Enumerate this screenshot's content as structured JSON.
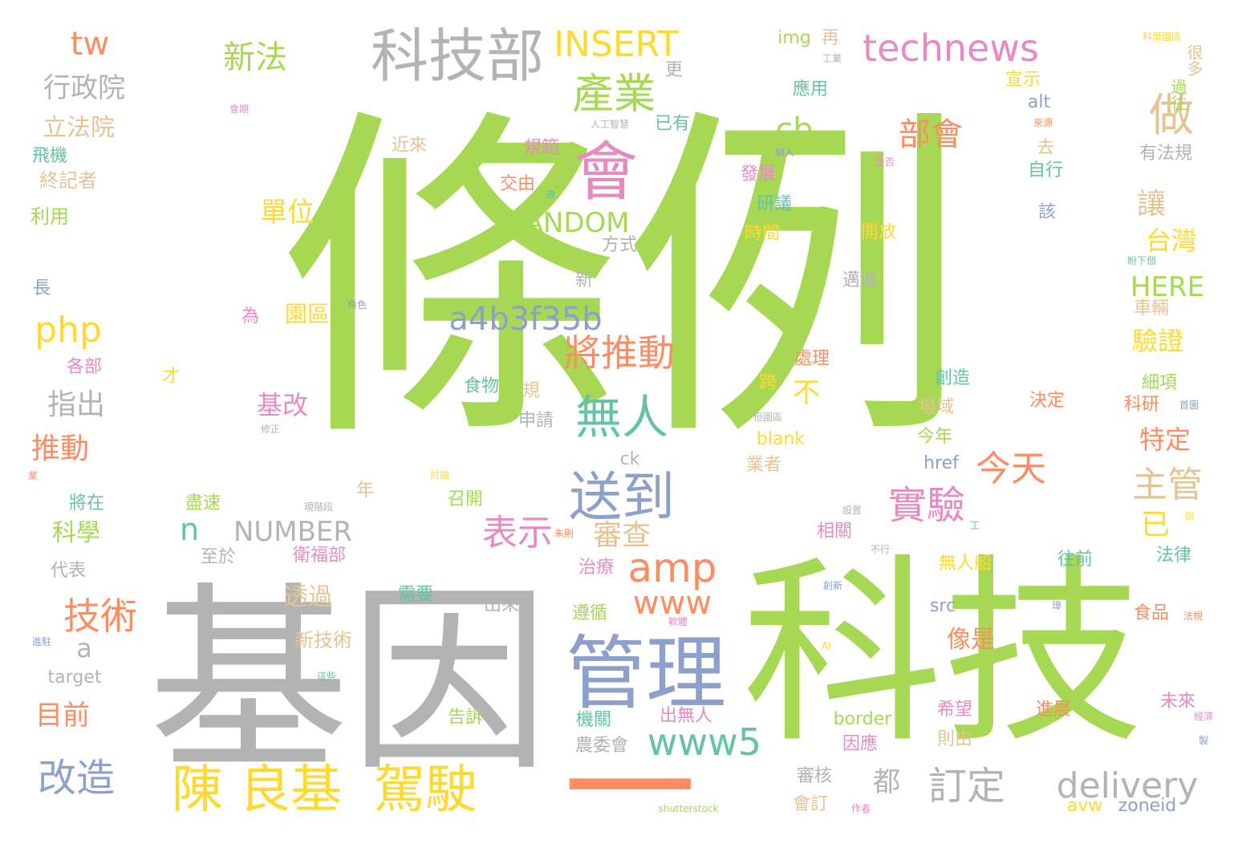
{
  "words": [
    {
      "text": "條例",
      "color": "#a6d854"
    },
    {
      "text": "基因",
      "color": "#b3b3b3"
    },
    {
      "text": "科技",
      "color": "#a6d854"
    },
    {
      "text": "一",
      "color": "#fc8d62"
    },
    {
      "text": "管理",
      "color": "#8da0cb"
    },
    {
      "text": "科技部",
      "color": "#b3b3b3"
    },
    {
      "text": "會",
      "color": "#e78ac3"
    },
    {
      "text": "陳 良基",
      "color": "#ffd92f"
    },
    {
      "text": "駕駛",
      "color": "#ffd92f"
    },
    {
      "text": "technews",
      "color": "#e78ac3"
    },
    {
      "text": "INSERT",
      "color": "#ffd92f"
    },
    {
      "text": "送到",
      "color": "#8da0cb"
    },
    {
      "text": "無人",
      "color": "#66c2a5"
    },
    {
      "text": "產業",
      "color": "#a6d854"
    },
    {
      "text": "amp",
      "color": "#fc8d62"
    },
    {
      "text": "www",
      "color": "#fc8d62"
    },
    {
      "text": "www5",
      "color": "#66c2a5"
    },
    {
      "text": "a4b3f35b",
      "color": "#8da0cb"
    },
    {
      "text": "將推動",
      "color": "#fc8d62"
    },
    {
      "text": "實驗",
      "color": "#e78ac3"
    },
    {
      "text": "今天",
      "color": "#fc8d62"
    },
    {
      "text": "表示",
      "color": "#e78ac3"
    },
    {
      "text": "技術",
      "color": "#fc8d62"
    },
    {
      "text": "改造",
      "color": "#8da0cb"
    },
    {
      "text": "delivery",
      "color": "#b3b3b3"
    },
    {
      "text": "訂定",
      "color": "#b3b3b3"
    },
    {
      "text": "做",
      "color": "#e5c494"
    },
    {
      "text": "新法",
      "color": "#a6d854"
    },
    {
      "text": "行政院",
      "color": "#b3b3b3"
    },
    {
      "text": "tw",
      "color": "#fc8d62"
    },
    {
      "text": "php",
      "color": "#ffd92f"
    },
    {
      "text": "指出",
      "color": "#b3b3b3"
    },
    {
      "text": "推動",
      "color": "#fc8d62"
    },
    {
      "text": "RANDOM",
      "color": "#a6d854"
    },
    {
      "text": "NUMBER",
      "color": "#b3b3b3"
    },
    {
      "text": "HERE",
      "color": "#a6d854"
    },
    {
      "text": "部會",
      "color": "#fc8d62"
    },
    {
      "text": "cb",
      "color": "#a6d854"
    },
    {
      "text": "主管",
      "color": "#e5c494"
    },
    {
      "text": "審查",
      "color": "#e5c494"
    },
    {
      "text": "n",
      "color": "#66c2a5"
    },
    {
      "text": "a",
      "color": "#b3b3b3"
    },
    {
      "text": "目前",
      "color": "#fc8d62"
    },
    {
      "text": "立法院",
      "color": "#e5c494"
    },
    {
      "text": "單位",
      "color": "#ffd92f"
    },
    {
      "text": "基改",
      "color": "#e78ac3"
    },
    {
      "text": "透過",
      "color": "#e5c494"
    },
    {
      "text": "都",
      "color": "#b3b3b3"
    },
    {
      "text": "讓",
      "color": "#e5c494"
    },
    {
      "text": "台灣",
      "color": "#ffd92f"
    },
    {
      "text": "驗證",
      "color": "#ffd92f"
    },
    {
      "text": "特定",
      "color": "#fc8d62"
    },
    {
      "text": "已",
      "color": "#ffd92f"
    },
    {
      "text": "像是",
      "color": "#fc8d62"
    },
    {
      "text": "科學",
      "color": "#a6d854"
    },
    {
      "text": "園區",
      "color": "#ffd92f"
    },
    {
      "text": "不",
      "color": "#ffd92f"
    },
    {
      "text": "新技術",
      "color": "#e5c494"
    },
    {
      "text": "飛機",
      "color": "#66c2a5"
    },
    {
      "text": "終記者",
      "color": "#e5c494"
    },
    {
      "text": "利用",
      "color": "#a6d854"
    },
    {
      "text": "img",
      "color": "#a6d854"
    },
    {
      "text": "再",
      "color": "#e5c494"
    },
    {
      "text": "更",
      "color": "#b3b3b3"
    },
    {
      "text": "應用",
      "color": "#66c2a5"
    },
    {
      "text": "已有",
      "color": "#66c2a5"
    },
    {
      "text": "近來",
      "color": "#e5c494"
    },
    {
      "text": "規範",
      "color": "#e78ac3"
    },
    {
      "text": "交由",
      "color": "#fc8d62"
    },
    {
      "text": "方式",
      "color": "#b3b3b3"
    },
    {
      "text": "新",
      "color": "#b3b3b3"
    },
    {
      "text": "發展",
      "color": "#e78ac3"
    },
    {
      "text": "研議",
      "color": "#66c2a5"
    },
    {
      "text": "時間",
      "color": "#ffd92f"
    },
    {
      "text": "開放",
      "color": "#ffd92f"
    },
    {
      "text": "邁進",
      "color": "#b3b3b3"
    },
    {
      "text": "宣示",
      "color": "#ffd92f"
    },
    {
      "text": "alt",
      "color": "#8da0cb"
    },
    {
      "text": "去",
      "color": "#e5c494"
    },
    {
      "text": "自行",
      "color": "#66c2a5"
    },
    {
      "text": "該",
      "color": "#8da0cb"
    },
    {
      "text": "很多",
      "color": "#e5c494"
    },
    {
      "text": "過往",
      "color": "#a6d854"
    },
    {
      "text": "有法規",
      "color": "#b3b3b3"
    },
    {
      "text": "處理",
      "color": "#fc8d62"
    },
    {
      "text": "跨",
      "color": "#ffd92f"
    },
    {
      "text": "創造",
      "color": "#66c2a5"
    },
    {
      "text": "場域",
      "color": "#e5c494"
    },
    {
      "text": "今年",
      "color": "#a6d854"
    },
    {
      "text": "blank",
      "color": "#ffd92f"
    },
    {
      "text": "業者",
      "color": "#e5c494"
    },
    {
      "text": "href",
      "color": "#8da0cb"
    },
    {
      "text": "決定",
      "color": "#fc8d62"
    },
    {
      "text": "細項",
      "color": "#a6d854"
    },
    {
      "text": "科研",
      "color": "#fc8d62"
    },
    {
      "text": "車輛",
      "color": "#e5c494"
    },
    {
      "text": "食物",
      "color": "#66c2a5"
    },
    {
      "text": "規",
      "color": "#e5c494"
    },
    {
      "text": "申請",
      "color": "#b3b3b3"
    },
    {
      "text": "ck",
      "color": "#b3b3b3"
    },
    {
      "text": "召開",
      "color": "#a6d854"
    },
    {
      "text": "盡速",
      "color": "#a6d854"
    },
    {
      "text": "至於",
      "color": "#b3b3b3"
    },
    {
      "text": "衛福部",
      "color": "#e78ac3"
    },
    {
      "text": "年",
      "color": "#e5c494"
    },
    {
      "text": "相關",
      "color": "#e78ac3"
    },
    {
      "text": "無人船",
      "color": "#ffd92f"
    },
    {
      "text": "往前",
      "color": "#66c2a5"
    },
    {
      "text": "法律",
      "color": "#66c2a5"
    },
    {
      "text": "治療",
      "color": "#e78ac3"
    },
    {
      "text": "遵循",
      "color": "#a6d854"
    },
    {
      "text": "需要",
      "color": "#66c2a5"
    },
    {
      "text": "出來",
      "color": "#b3b3b3"
    },
    {
      "text": "src",
      "color": "#8da0cb"
    },
    {
      "text": "食品",
      "color": "#fc8d62"
    },
    {
      "text": "出無人",
      "color": "#e78ac3"
    },
    {
      "text": "機關",
      "color": "#66c2a5"
    },
    {
      "text": "農委會",
      "color": "#b3b3b3"
    },
    {
      "text": "border",
      "color": "#a6d854"
    },
    {
      "text": "希望",
      "color": "#e78ac3"
    },
    {
      "text": "則由",
      "color": "#e5c494"
    },
    {
      "text": "進展",
      "color": "#fc8d62"
    },
    {
      "text": "未來",
      "color": "#e78ac3"
    },
    {
      "text": "因應",
      "color": "#e78ac3"
    },
    {
      "text": "審核",
      "color": "#b3b3b3"
    },
    {
      "text": "會訂",
      "color": "#e5c494"
    },
    {
      "text": "告訴",
      "color": "#a6d854"
    },
    {
      "text": "target",
      "color": "#b3b3b3"
    },
    {
      "text": "代表",
      "color": "#b3b3b3"
    },
    {
      "text": "將在",
      "color": "#66c2a5"
    },
    {
      "text": "長",
      "color": "#8da0cb"
    },
    {
      "text": "為",
      "color": "#e78ac3"
    },
    {
      "text": "各部",
      "color": "#e78ac3"
    },
    {
      "text": "才",
      "color": "#ffd92f"
    },
    {
      "text": "avw",
      "color": "#ffd92f"
    },
    {
      "text": "zoneid",
      "color": "#8da0cb"
    },
    {
      "text": "科學園區",
      "color": "#ffd92f"
    },
    {
      "text": "工業",
      "color": "#b3b3b3"
    },
    {
      "text": "會期",
      "color": "#e78ac3"
    },
    {
      "text": "人工智慧",
      "color": "#b3b3b3"
    },
    {
      "text": "來源",
      "color": "#fc8d62"
    },
    {
      "text": "納入",
      "color": "#8da0cb"
    },
    {
      "text": "是否",
      "color": "#e78ac3"
    },
    {
      "text": "適",
      "color": "#66c2a5"
    },
    {
      "text": "盼下個",
      "color": "#66c2a5"
    },
    {
      "text": "角色",
      "color": "#8da0cb"
    },
    {
      "text": "但園區",
      "color": "#b3b3b3"
    },
    {
      "text": "修正",
      "color": "#b3b3b3"
    },
    {
      "text": "首圖",
      "color": "#8da0cb"
    },
    {
      "text": "討論",
      "color": "#ffd92f"
    },
    {
      "text": "業",
      "color": "#fc8d62"
    },
    {
      "text": "現階段",
      "color": "#b3b3b3"
    },
    {
      "text": "設置",
      "color": "#b3b3b3"
    },
    {
      "text": "說",
      "color": "#ffd92f"
    },
    {
      "text": "工",
      "color": "#66c2a5"
    },
    {
      "text": "朱則",
      "color": "#fc8d62"
    },
    {
      "text": "不行",
      "color": "#b3b3b3"
    },
    {
      "text": "創新",
      "color": "#8da0cb"
    },
    {
      "text": "軟體",
      "color": "#e78ac3"
    },
    {
      "text": "法規",
      "color": "#fc8d62"
    },
    {
      "text": "璋",
      "color": "#8da0cb"
    },
    {
      "text": "進駐",
      "color": "#8da0cb"
    },
    {
      "text": "AI",
      "color": "#ffd92f"
    },
    {
      "text": "這些",
      "color": "#66c2a5"
    },
    {
      "text": "經濟",
      "color": "#e78ac3"
    },
    {
      "text": "製",
      "color": "#8da0cb"
    },
    {
      "text": "shutterstock",
      "color": "#a6d854"
    },
    {
      "text": "作者",
      "color": "#e78ac3"
    }
  ]
}
